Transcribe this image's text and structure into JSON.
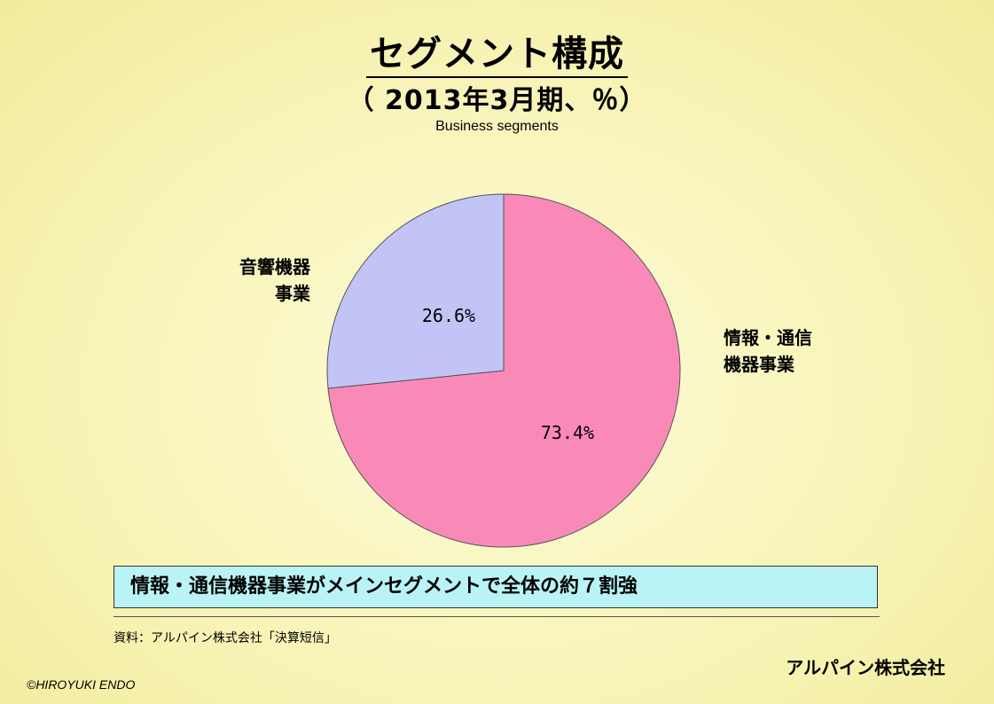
{
  "chart_data": {
    "type": "pie",
    "title": "セグメント構成",
    "subtitle": "（ 2013年3月期、％）",
    "caption": "Business segments",
    "slices": [
      {
        "name": "情報・通信機器事業",
        "name_lines": [
          "情報・通信",
          "機器事業"
        ],
        "value": 73.4,
        "value_label": "73.4%",
        "color": "#f98ab8"
      },
      {
        "name": "音響機器事業",
        "name_lines": [
          "音響機器",
          "事業"
        ],
        "value": 26.6,
        "value_label": "26.6%",
        "color": "#c3c4f6"
      }
    ]
  },
  "note": "情報・通信機器事業がメインセグメントで全体の約７割強",
  "source": "資料：アルパイン株式会社「決算短信」",
  "company": "アルパイン株式会社",
  "copyright": "©HIROYUKI  ENDO"
}
